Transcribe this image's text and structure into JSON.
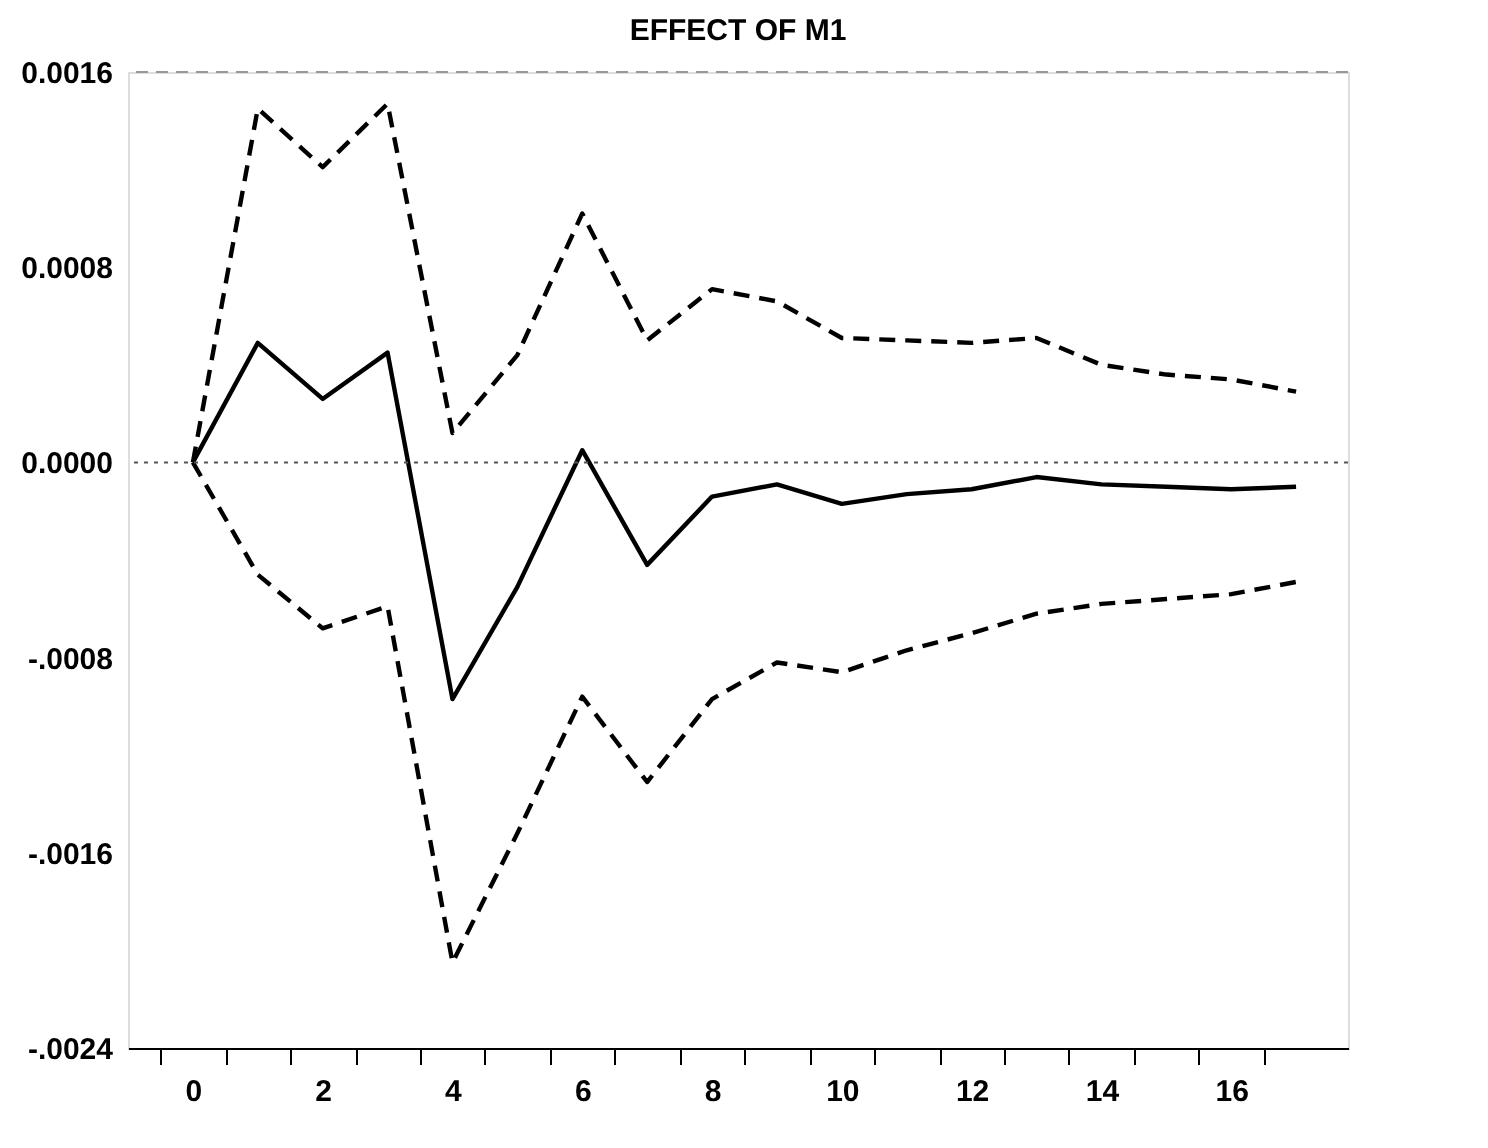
{
  "chart_data": {
    "type": "line",
    "title": "EFFECT OF M1",
    "x": [
      0,
      1,
      2,
      3,
      4,
      5,
      6,
      7,
      8,
      9,
      10,
      11,
      12,
      13,
      14,
      15,
      16,
      17
    ],
    "series": [
      {
        "color": "#000000",
        "line_style": "solid",
        "values": [
          0,
          0.00049,
          0.00026,
          0.00045,
          -0.00097,
          -0.00051,
          5e-05,
          -0.00042,
          -0.00014,
          -9e-05,
          -0.00017,
          -0.00013,
          -0.00011,
          -6e-05,
          -9e-05,
          -0.0001,
          -0.00011,
          -0.0001
        ]
      },
      {
        "color": "#000000",
        "line_style": "dashed",
        "values": [
          0,
          0.00145,
          0.00121,
          0.00147,
          0.00012,
          0.00044,
          0.00102,
          0.0005,
          0.00071,
          0.00066,
          0.00051,
          0.0005,
          0.00049,
          0.00051,
          0.0004,
          0.00036,
          0.00034,
          0.00029
        ]
      },
      {
        "color": "#000000",
        "line_style": "dashed",
        "values": [
          0,
          -0.00046,
          -0.00068,
          -0.00059,
          -0.00205,
          -0.00152,
          -0.00096,
          -0.00131,
          -0.00097,
          -0.00082,
          -0.00086,
          -0.00077,
          -0.0007,
          -0.00062,
          -0.00058,
          -0.00056,
          -0.00054,
          -0.00049
        ]
      }
    ],
    "xlim": [
      -1,
      17.8
    ],
    "xticks": [
      {
        "value": -0.5,
        "label": null
      },
      0,
      {
        "value": 0.5,
        "label": null
      },
      {
        "value": 1.5,
        "label": null
      },
      2,
      {
        "value": 2.5,
        "label": null
      },
      {
        "value": 3.5,
        "label": null
      },
      4,
      {
        "value": 4.5,
        "label": null
      },
      {
        "value": 5.5,
        "label": null
      },
      6,
      {
        "value": 6.5,
        "label": null
      },
      {
        "value": 7.5,
        "label": null
      },
      8,
      {
        "value": 8.5,
        "label": null
      },
      {
        "value": 9.5,
        "label": null
      },
      10,
      {
        "value": 10.5,
        "label": null
      },
      {
        "value": 11.5,
        "label": null
      },
      12,
      {
        "value": 12.5,
        "label": null
      },
      {
        "value": 13.5,
        "label": null
      },
      14,
      {
        "value": 14.5,
        "label": null
      },
      {
        "value": 15.5,
        "label": null
      },
      16,
      {
        "value": 16.5,
        "label": null
      }
    ],
    "ylim": [
      -0.0024,
      0.0016
    ],
    "yticks": [
      {
        "value": 0.0016,
        "label": "0.0016"
      },
      {
        "value": 0.0008,
        "label": "0.0008"
      },
      {
        "value": 0,
        "label": "0.0000"
      },
      {
        "value": -0.0008,
        "label": "-.0008"
      },
      {
        "value": -0.0016,
        "label": "-.0016"
      },
      {
        "value": -0.0024,
        "label": "-.0024"
      }
    ],
    "ref_lines": [
      {
        "axis": "y",
        "value": 0,
        "label": null,
        "color": "#555555",
        "line_style": "dotted"
      }
    ],
    "grid": false,
    "marker": "none"
  }
}
